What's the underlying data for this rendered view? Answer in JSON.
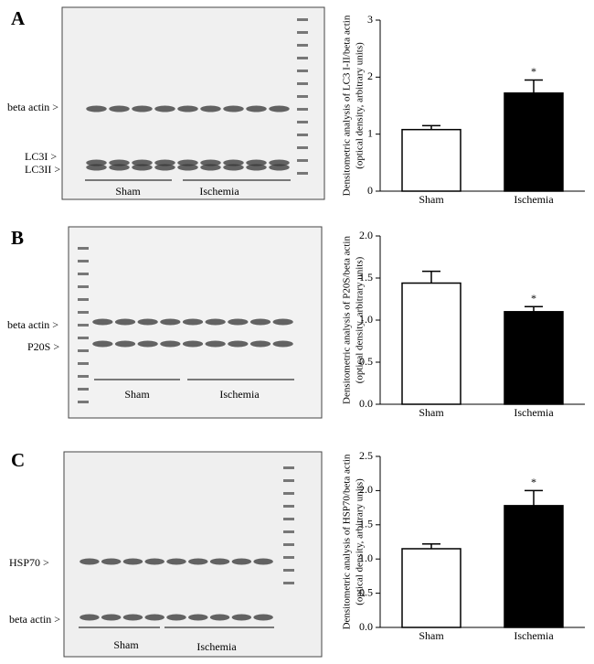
{
  "panels": [
    {
      "label": "A",
      "blot_labels": [
        "beta actin >",
        "LC3I >",
        "LC3II >"
      ],
      "groups": [
        "Sham",
        "Ischemia"
      ]
    },
    {
      "label": "B",
      "blot_labels": [
        "beta actin >",
        "P20S >"
      ],
      "groups": [
        "Sham",
        "Ischemia"
      ]
    },
    {
      "label": "C",
      "blot_labels": [
        "HSP70 >",
        "beta actin >"
      ],
      "groups": [
        "Sham",
        "Ischemia"
      ]
    }
  ],
  "chart_data": [
    {
      "type": "bar",
      "ylabel": [
        "Densitometric analysis of LC3 I-II/beta actin",
        "(optical density, arbitrary units)"
      ],
      "categories": [
        "Sham",
        "Ischemia"
      ],
      "values": [
        1.08,
        1.72
      ],
      "errors": [
        0.07,
        0.23
      ],
      "colors": [
        "#ffffff",
        "#000000"
      ],
      "ylim": [
        0,
        3
      ],
      "yticks": [
        0,
        1,
        2,
        3
      ],
      "annotation": "*"
    },
    {
      "type": "bar",
      "ylabel": [
        "Densitometric analysis of P20S/beta actin",
        "(optical density, arbitrary units)"
      ],
      "categories": [
        "Sham",
        "Ischemia"
      ],
      "values": [
        1.44,
        1.1
      ],
      "errors": [
        0.14,
        0.06
      ],
      "colors": [
        "#ffffff",
        "#000000"
      ],
      "ylim": [
        0,
        2
      ],
      "yticks": [
        {
          "value": 0,
          "label": "0.0"
        },
        {
          "value": 0.5,
          "label": "0.5"
        },
        {
          "value": 1,
          "label": "1.0"
        },
        {
          "value": 1.5,
          "label": "1.5"
        },
        {
          "value": 2,
          "label": "2.0"
        }
      ],
      "annotation": "*"
    },
    {
      "type": "bar",
      "ylabel": [
        "Densitometric analysis of HSP70/beta actin",
        "(optical density, arbitrary units)"
      ],
      "categories": [
        "Sham",
        "Ischemia"
      ],
      "values": [
        1.15,
        1.78
      ],
      "errors": [
        0.07,
        0.22
      ],
      "colors": [
        "#ffffff",
        "#000000"
      ],
      "ylim": [
        0,
        2.5
      ],
      "yticks": [
        {
          "value": 0,
          "label": "0.0"
        },
        {
          "value": 0.5,
          "label": "0.5"
        },
        {
          "value": 1,
          "label": "1.0"
        },
        {
          "value": 1.5,
          "label": "1.5"
        },
        {
          "value": 2,
          "label": "2.0"
        },
        {
          "value": 2.5,
          "label": "2.5"
        }
      ],
      "annotation": "*"
    }
  ]
}
